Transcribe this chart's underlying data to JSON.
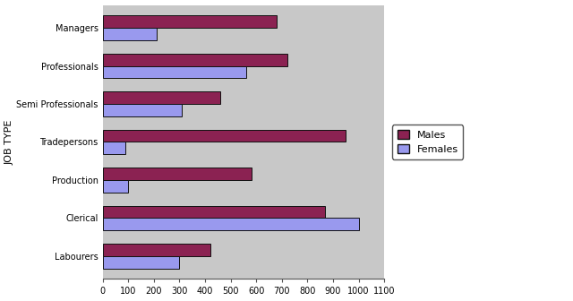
{
  "categories": [
    "Labourers",
    "Clerical",
    "Production",
    "Tradepersons",
    "Semi Professionals",
    "Professionals",
    "Managers"
  ],
  "males": [
    420,
    870,
    580,
    950,
    460,
    720,
    680
  ],
  "females": [
    300,
    1000,
    100,
    90,
    310,
    560,
    210
  ],
  "male_color": "#8B2252",
  "female_color": "#9999EE",
  "bg_color": "#C8C8C8",
  "fig_bg": "#FFFFFF",
  "ylabel": "JOB TYPE",
  "xlim": [
    0,
    1100
  ],
  "bar_width": 0.32,
  "legend_males": "Males",
  "legend_females": "Females",
  "edge_color": "#111111",
  "xtick_step": 100,
  "xtick_max": 1100,
  "fontsize_ticks": 7,
  "fontsize_ylabel": 8,
  "fontsize_legend": 8
}
